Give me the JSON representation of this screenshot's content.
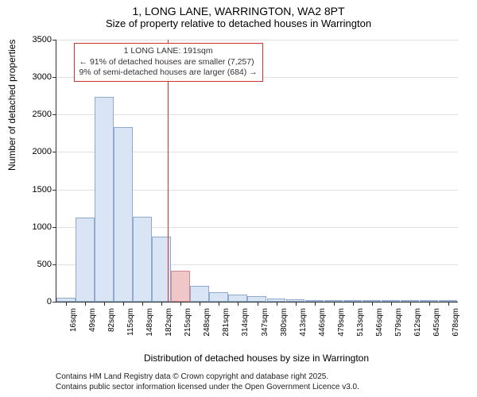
{
  "title_main": "1, LONG LANE, WARRINGTON, WA2 8PT",
  "title_sub": "Size of property relative to detached houses in Warrington",
  "y_axis_label": "Number of detached properties",
  "x_axis_label": "Distribution of detached houses by size in Warrington",
  "footnote_line1": "Contains HM Land Registry data © Crown copyright and database right 2025.",
  "footnote_line2": "Contains public sector information licensed under the Open Government Licence v3.0.",
  "chart": {
    "type": "histogram",
    "ylim": [
      0,
      3500
    ],
    "ytick_step": 500,
    "yticks": [
      0,
      500,
      1000,
      1500,
      2000,
      2500,
      3000,
      3500
    ],
    "x_tick_labels": [
      "16sqm",
      "49sqm",
      "82sqm",
      "115sqm",
      "148sqm",
      "182sqm",
      "215sqm",
      "248sqm",
      "281sqm",
      "314sqm",
      "347sqm",
      "380sqm",
      "413sqm",
      "446sqm",
      "479sqm",
      "513sqm",
      "546sqm",
      "579sqm",
      "612sqm",
      "645sqm",
      "678sqm"
    ],
    "bar_values": [
      50,
      1120,
      2740,
      2330,
      1130,
      870,
      410,
      210,
      130,
      100,
      75,
      45,
      30,
      25,
      10,
      5,
      5,
      3,
      2,
      2,
      2
    ],
    "bar_fill": "#d9e4f5",
    "bar_border": "#8fa9cf",
    "highlight_bar_index": 6,
    "highlight_bar_fill": "#f0c7c7",
    "highlight_bar_border": "#d48a8a",
    "background_color": "#ffffff",
    "grid_color": "#e0e0e0",
    "refline_x_sqm": 191,
    "refline_color": "#cc3333",
    "annotation": {
      "line1": "1 LONG LANE: 191sqm",
      "line2": "← 91% of detached houses are smaller (7,257)",
      "line3": "9% of semi-detached houses are larger (684) →",
      "border_color": "#cc3333",
      "text_color": "#333333"
    }
  }
}
